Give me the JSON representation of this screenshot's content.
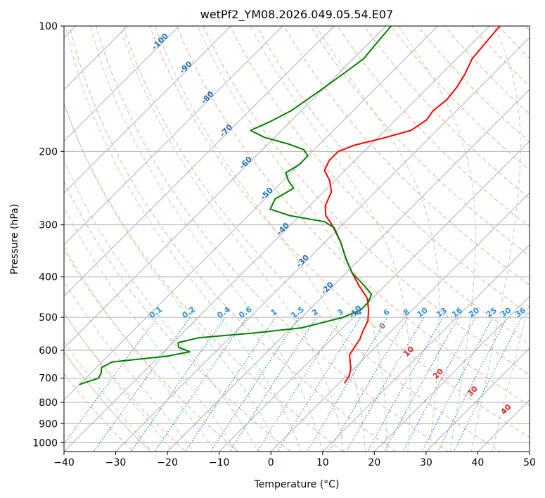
{
  "chart_data": {
    "type": "line",
    "subtype": "skew-t log-p diagram",
    "title": "wetPf2_YM08.2026.049.05.54.E07",
    "xlabel": "Temperature (°C)",
    "ylabel": "Pressure (hPa)",
    "xlim": [
      -40,
      50
    ],
    "ylim": [
      1050,
      100
    ],
    "x_ticks": [
      -40,
      -30,
      -20,
      -10,
      0,
      10,
      20,
      30,
      40,
      50
    ],
    "x_tick_labels": [
      "−40",
      "−30",
      "−20",
      "−10",
      "0",
      "10",
      "20",
      "30",
      "40",
      "50"
    ],
    "y_ticks": [
      100,
      200,
      300,
      400,
      500,
      600,
      700,
      800,
      900,
      1000
    ],
    "y_tick_labels": [
      "100",
      "200",
      "300",
      "400",
      "500",
      "600",
      "700",
      "800",
      "900",
      "1000"
    ],
    "grid": true,
    "series": [
      {
        "name": "Temperature",
        "color": "#ff0000",
        "points": [
          {
            "p": 720,
            "t": 1.0
          },
          {
            "p": 690,
            "t": 0.5
          },
          {
            "p": 660,
            "t": -0.8
          },
          {
            "p": 640,
            "t": -2.0
          },
          {
            "p": 615,
            "t": -3.5
          },
          {
            "p": 590,
            "t": -4.0
          },
          {
            "p": 565,
            "t": -4.5
          },
          {
            "p": 540,
            "t": -5.5
          },
          {
            "p": 510,
            "t": -6.5
          },
          {
            "p": 480,
            "t": -8.5
          },
          {
            "p": 450,
            "t": -11.0
          },
          {
            "p": 420,
            "t": -15.0
          },
          {
            "p": 390,
            "t": -19.0
          },
          {
            "p": 360,
            "t": -23.0
          },
          {
            "p": 330,
            "t": -27.0
          },
          {
            "p": 300,
            "t": -32.0
          },
          {
            "p": 285,
            "t": -35.0
          },
          {
            "p": 270,
            "t": -37.0
          },
          {
            "p": 250,
            "t": -38.5
          },
          {
            "p": 235,
            "t": -41.0
          },
          {
            "p": 222,
            "t": -44.0
          },
          {
            "p": 210,
            "t": -45.0
          },
          {
            "p": 200,
            "t": -45.0
          },
          {
            "p": 193,
            "t": -43.0
          },
          {
            "p": 186,
            "t": -39.0
          },
          {
            "p": 178,
            "t": -35.0
          },
          {
            "p": 168,
            "t": -34.0
          },
          {
            "p": 160,
            "t": -34.5
          },
          {
            "p": 150,
            "t": -34.0
          },
          {
            "p": 140,
            "t": -34.5
          },
          {
            "p": 130,
            "t": -35.5
          },
          {
            "p": 120,
            "t": -37.0
          },
          {
            "p": 110,
            "t": -37.5
          },
          {
            "p": 100,
            "t": -38.0
          }
        ]
      },
      {
        "name": "Dewpoint",
        "color": "#008000",
        "points": [
          {
            "p": 725,
            "t": -50.0
          },
          {
            "p": 700,
            "t": -47.5
          },
          {
            "p": 680,
            "t": -48.0
          },
          {
            "p": 660,
            "t": -49.0
          },
          {
            "p": 640,
            "t": -48.0
          },
          {
            "p": 620,
            "t": -38.5
          },
          {
            "p": 605,
            "t": -35.0
          },
          {
            "p": 590,
            "t": -38.0
          },
          {
            "p": 575,
            "t": -39.0
          },
          {
            "p": 560,
            "t": -36.0
          },
          {
            "p": 545,
            "t": -26.0
          },
          {
            "p": 530,
            "t": -18.0
          },
          {
            "p": 515,
            "t": -15.0
          },
          {
            "p": 500,
            "t": -12.0
          },
          {
            "p": 480,
            "t": -10.0
          },
          {
            "p": 460,
            "t": -10.0
          },
          {
            "p": 440,
            "t": -11.0
          },
          {
            "p": 420,
            "t": -14.0
          },
          {
            "p": 390,
            "t": -19.0
          },
          {
            "p": 360,
            "t": -23.0
          },
          {
            "p": 330,
            "t": -27.0
          },
          {
            "p": 305,
            "t": -31.0
          },
          {
            "p": 295,
            "t": -34.0
          },
          {
            "p": 285,
            "t": -42.0
          },
          {
            "p": 275,
            "t": -47.0
          },
          {
            "p": 260,
            "t": -48.0
          },
          {
            "p": 245,
            "t": -46.5
          },
          {
            "p": 235,
            "t": -49.0
          },
          {
            "p": 225,
            "t": -51.0
          },
          {
            "p": 215,
            "t": -50.0
          },
          {
            "p": 205,
            "t": -50.0
          },
          {
            "p": 198,
            "t": -52.0
          },
          {
            "p": 192,
            "t": -56.0
          },
          {
            "p": 185,
            "t": -62.0
          },
          {
            "p": 178,
            "t": -66.0
          },
          {
            "p": 170,
            "t": -64.0
          },
          {
            "p": 160,
            "t": -62.0
          },
          {
            "p": 150,
            "t": -61.0
          },
          {
            "p": 140,
            "t": -60.0
          },
          {
            "p": 130,
            "t": -59.0
          },
          {
            "p": 120,
            "t": -58.0
          },
          {
            "p": 110,
            "t": -58.5
          },
          {
            "p": 100,
            "t": -59.0
          }
        ]
      }
    ],
    "isotherm_labels": [
      "-100",
      "-90",
      "-80",
      "-70",
      "-60",
      "-50",
      "-40",
      "-30",
      "-20",
      "-10"
    ],
    "mixing_ratio_labels": [
      "0.1",
      "0.2",
      "0.4",
      "0.6",
      "1",
      "1.5",
      "2",
      "3",
      "4",
      "6",
      "8",
      "10",
      "13",
      "16",
      "20",
      "25",
      "30",
      "36"
    ],
    "wet_bulb_labels": [
      "0",
      "10",
      "20",
      "30",
      "40"
    ],
    "colors": {
      "temperature": "#ff0000",
      "dewpoint": "#008000",
      "isotherm_label": "#1f6fb4",
      "mixing_ratio": "#2d8fe6",
      "dry_adiabat": "#f4a582",
      "moist_adiabat": "#9fd49f",
      "theta_e": "#d9b38c",
      "wet_bulb_label_zero": "#808080",
      "wet_bulb_label": "#d62728",
      "grid": "#b0b0b0"
    }
  }
}
